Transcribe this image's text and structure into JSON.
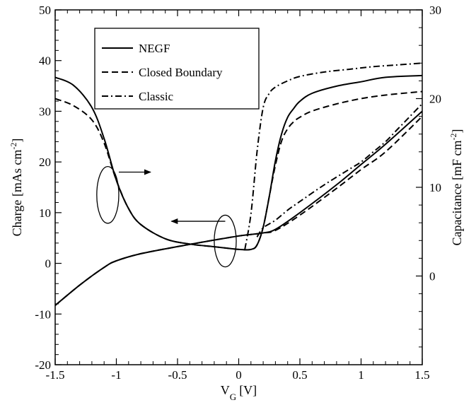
{
  "chart_data": {
    "type": "line",
    "xlabel": {
      "main": "V",
      "sub": "G",
      "unit": "[V]"
    },
    "ylabel_left": {
      "text": "Charge [mAs cm",
      "sup": "-2",
      "close": "]"
    },
    "ylabel_right": {
      "text": "Capacitance [mF cm",
      "sup": "-2",
      "close": "]"
    },
    "xlim": [
      -1.5,
      1.5
    ],
    "ylim_left": [
      -20,
      50
    ],
    "ylim_right": [
      -10,
      30
    ],
    "x_ticks": [
      "-1.5",
      "-1",
      "-0.5",
      "0",
      "0.5",
      "1",
      "1.5"
    ],
    "y_ticks_left": [
      "-20",
      "-10",
      "0",
      "10",
      "20",
      "30",
      "40",
      "50"
    ],
    "y_ticks_right": [
      "0",
      "10",
      "20",
      "30"
    ],
    "legend": [
      {
        "name": "NEGF",
        "dash": "solid"
      },
      {
        "name": "Closed Boundary",
        "dash": "dashed"
      },
      {
        "name": "Classic",
        "dash": "dashdot"
      }
    ],
    "legend_position": "top-left",
    "series": [
      {
        "name": "NEGF",
        "axis": "left",
        "dash": "solid",
        "x": [
          -1.5,
          -1.3,
          -1.1,
          -1.0,
          -0.8,
          -0.5,
          -0.2,
          0.0,
          0.1,
          0.2,
          0.3,
          0.5,
          0.8,
          1.0,
          1.2,
          1.5
        ],
        "y": [
          -8.3,
          -4.3,
          -0.8,
          0.5,
          1.9,
          3.3,
          4.6,
          5.4,
          5.7,
          6.0,
          6.7,
          10.0,
          15.5,
          19.5,
          23.5,
          30.0
        ]
      },
      {
        "name": "Closed Boundary",
        "axis": "left",
        "dash": "dashed",
        "x": [
          -1.5,
          -1.3,
          -1.1,
          -1.0,
          -0.8,
          -0.5,
          -0.2,
          0.0,
          0.1,
          0.2,
          0.3,
          0.5,
          0.8,
          1.0,
          1.2,
          1.5
        ],
        "y": [
          -8.3,
          -4.3,
          -0.8,
          0.5,
          1.9,
          3.3,
          4.6,
          5.4,
          5.7,
          6.0,
          6.5,
          9.5,
          14.8,
          18.5,
          22.0,
          29.0
        ]
      },
      {
        "name": "Classic",
        "axis": "left",
        "dash": "dashdot",
        "x": [
          0.15,
          0.2,
          0.3,
          0.4,
          0.5,
          0.7,
          0.9,
          1.0,
          1.1,
          1.2,
          1.3,
          1.4,
          1.5
        ],
        "y": [
          5.2,
          7.0,
          8.5,
          10.5,
          12.2,
          15.5,
          18.5,
          20.0,
          22.0,
          24.0,
          26.5,
          29.0,
          31.5
        ]
      },
      {
        "name": "NEGF",
        "axis": "right",
        "dash": "solid",
        "x": [
          -1.5,
          -1.35,
          -1.2,
          -1.1,
          -1.0,
          -0.9,
          -0.8,
          -0.6,
          -0.4,
          -0.2,
          0.0,
          0.1,
          0.15,
          0.2,
          0.25,
          0.3,
          0.35,
          0.4,
          0.45,
          0.5,
          0.6,
          0.8,
          1.0,
          1.2,
          1.5
        ],
        "y": [
          22.4,
          21.5,
          19.0,
          15.5,
          10.8,
          7.6,
          5.8,
          4.2,
          3.6,
          3.3,
          3.0,
          3.0,
          3.5,
          5.5,
          9.0,
          13.0,
          16.0,
          17.9,
          18.9,
          19.7,
          20.6,
          21.4,
          21.9,
          22.4,
          22.6
        ]
      },
      {
        "name": "Closed Boundary",
        "axis": "right",
        "dash": "dashed",
        "x": [
          -1.5,
          -1.35,
          -1.2,
          -1.1,
          -1.0,
          -0.9,
          -0.8,
          -0.6,
          -0.4,
          -0.2,
          0.0,
          0.1,
          0.15,
          0.2,
          0.25,
          0.3,
          0.35,
          0.4,
          0.45,
          0.5,
          0.6,
          0.8,
          1.0,
          1.2,
          1.5
        ],
        "y": [
          20.0,
          19.2,
          17.6,
          15.0,
          10.8,
          7.6,
          5.8,
          4.2,
          3.6,
          3.3,
          3.0,
          3.0,
          3.5,
          5.5,
          9.0,
          12.5,
          15.2,
          16.6,
          17.4,
          17.9,
          18.6,
          19.4,
          20.0,
          20.4,
          20.8
        ]
      },
      {
        "name": "Classic",
        "axis": "right",
        "dash": "dashdot",
        "x": [
          0.05,
          0.1,
          0.15,
          0.2,
          0.25,
          0.3,
          0.4,
          0.5,
          0.7,
          0.9,
          1.1,
          1.3,
          1.5
        ],
        "y": [
          3.0,
          7.0,
          14.0,
          19.0,
          20.6,
          21.3,
          22.0,
          22.5,
          23.0,
          23.3,
          23.6,
          23.8,
          24.0
        ]
      }
    ],
    "annotations": [
      {
        "kind": "ellipse",
        "cx": -1.07,
        "cy_left": 13.5,
        "rx": 0.09,
        "ry_left": 5.6
      },
      {
        "kind": "arrow",
        "x1": -0.98,
        "y1_left": 18.0,
        "x2": -0.72,
        "y2_left": 18.0
      },
      {
        "kind": "ellipse",
        "cx": -0.11,
        "cy_left": 4.4,
        "rx": 0.09,
        "ry_left": 5.1
      },
      {
        "kind": "arrow",
        "x1": -0.11,
        "y1_left": 8.3,
        "x2": -0.55,
        "y2_left": 8.3
      }
    ]
  }
}
